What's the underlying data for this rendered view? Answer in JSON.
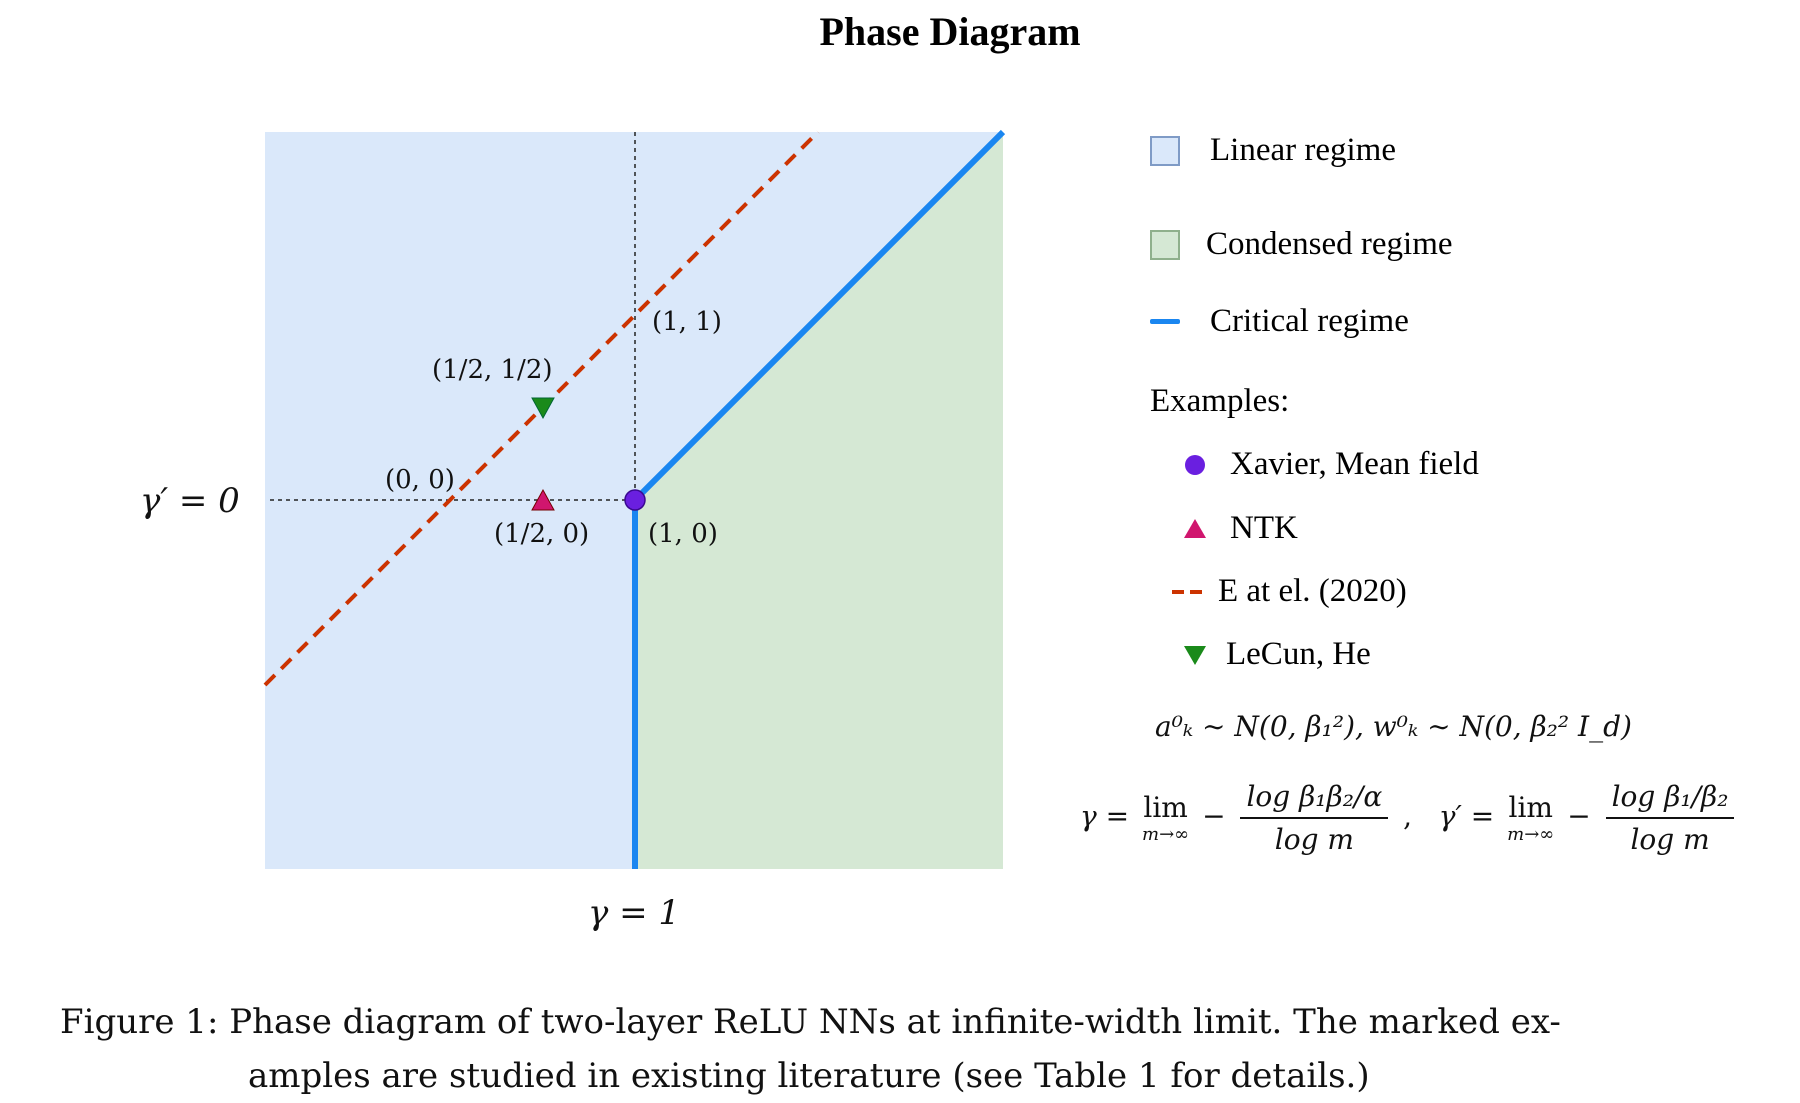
{
  "title": "Phase Diagram",
  "axes": {
    "y_label": "γ′ = 0",
    "x_label": "γ = 1"
  },
  "points": {
    "p11": "(1, 1)",
    "phalf": "(1/2, 1/2)",
    "p00": "(0, 0)",
    "phalf0": "(1/2, 0)",
    "p10": "(1, 0)"
  },
  "legend": {
    "linear": "Linear regime",
    "condensed": "Condensed regime",
    "critical": "Critical regime",
    "examples_heading": "Examples:",
    "xavier": "Xavier, Mean field",
    "ntk": "NTK",
    "e_et_al": "E at el. (2020)",
    "lecun": "LeCun, He"
  },
  "formulas": {
    "init": "a⁰ₖ ∼ N(0, β₁²),   w⁰ₖ ∼ N(0, β₂² I_d)",
    "gamma_lhs": "γ =",
    "lim": "lim",
    "lim_sub": "m→∞",
    "gamma_num": "log β₁β₂/α",
    "gamma_den": "log m",
    "gammap_lhs": "γ′ =",
    "gammap_num": "log β₁/β₂",
    "gammap_den": "log m"
  },
  "colors": {
    "linear_fill": "#dae8fa",
    "condensed_fill": "#d5e8d4",
    "critical_line": "#1a86f0",
    "e_line": "#cc3300",
    "xavier_marker": "#6a1fe0",
    "ntk_marker": "#d0166e",
    "lecun_marker": "#1a8a1a"
  },
  "caption": {
    "label": "Figure 1:",
    "line1": "Phase diagram of two-layer ReLU NNs at infinite-width limit.  The marked ex-",
    "line2": "amples are studied in existing literature (see Table 1 for details.)"
  }
}
